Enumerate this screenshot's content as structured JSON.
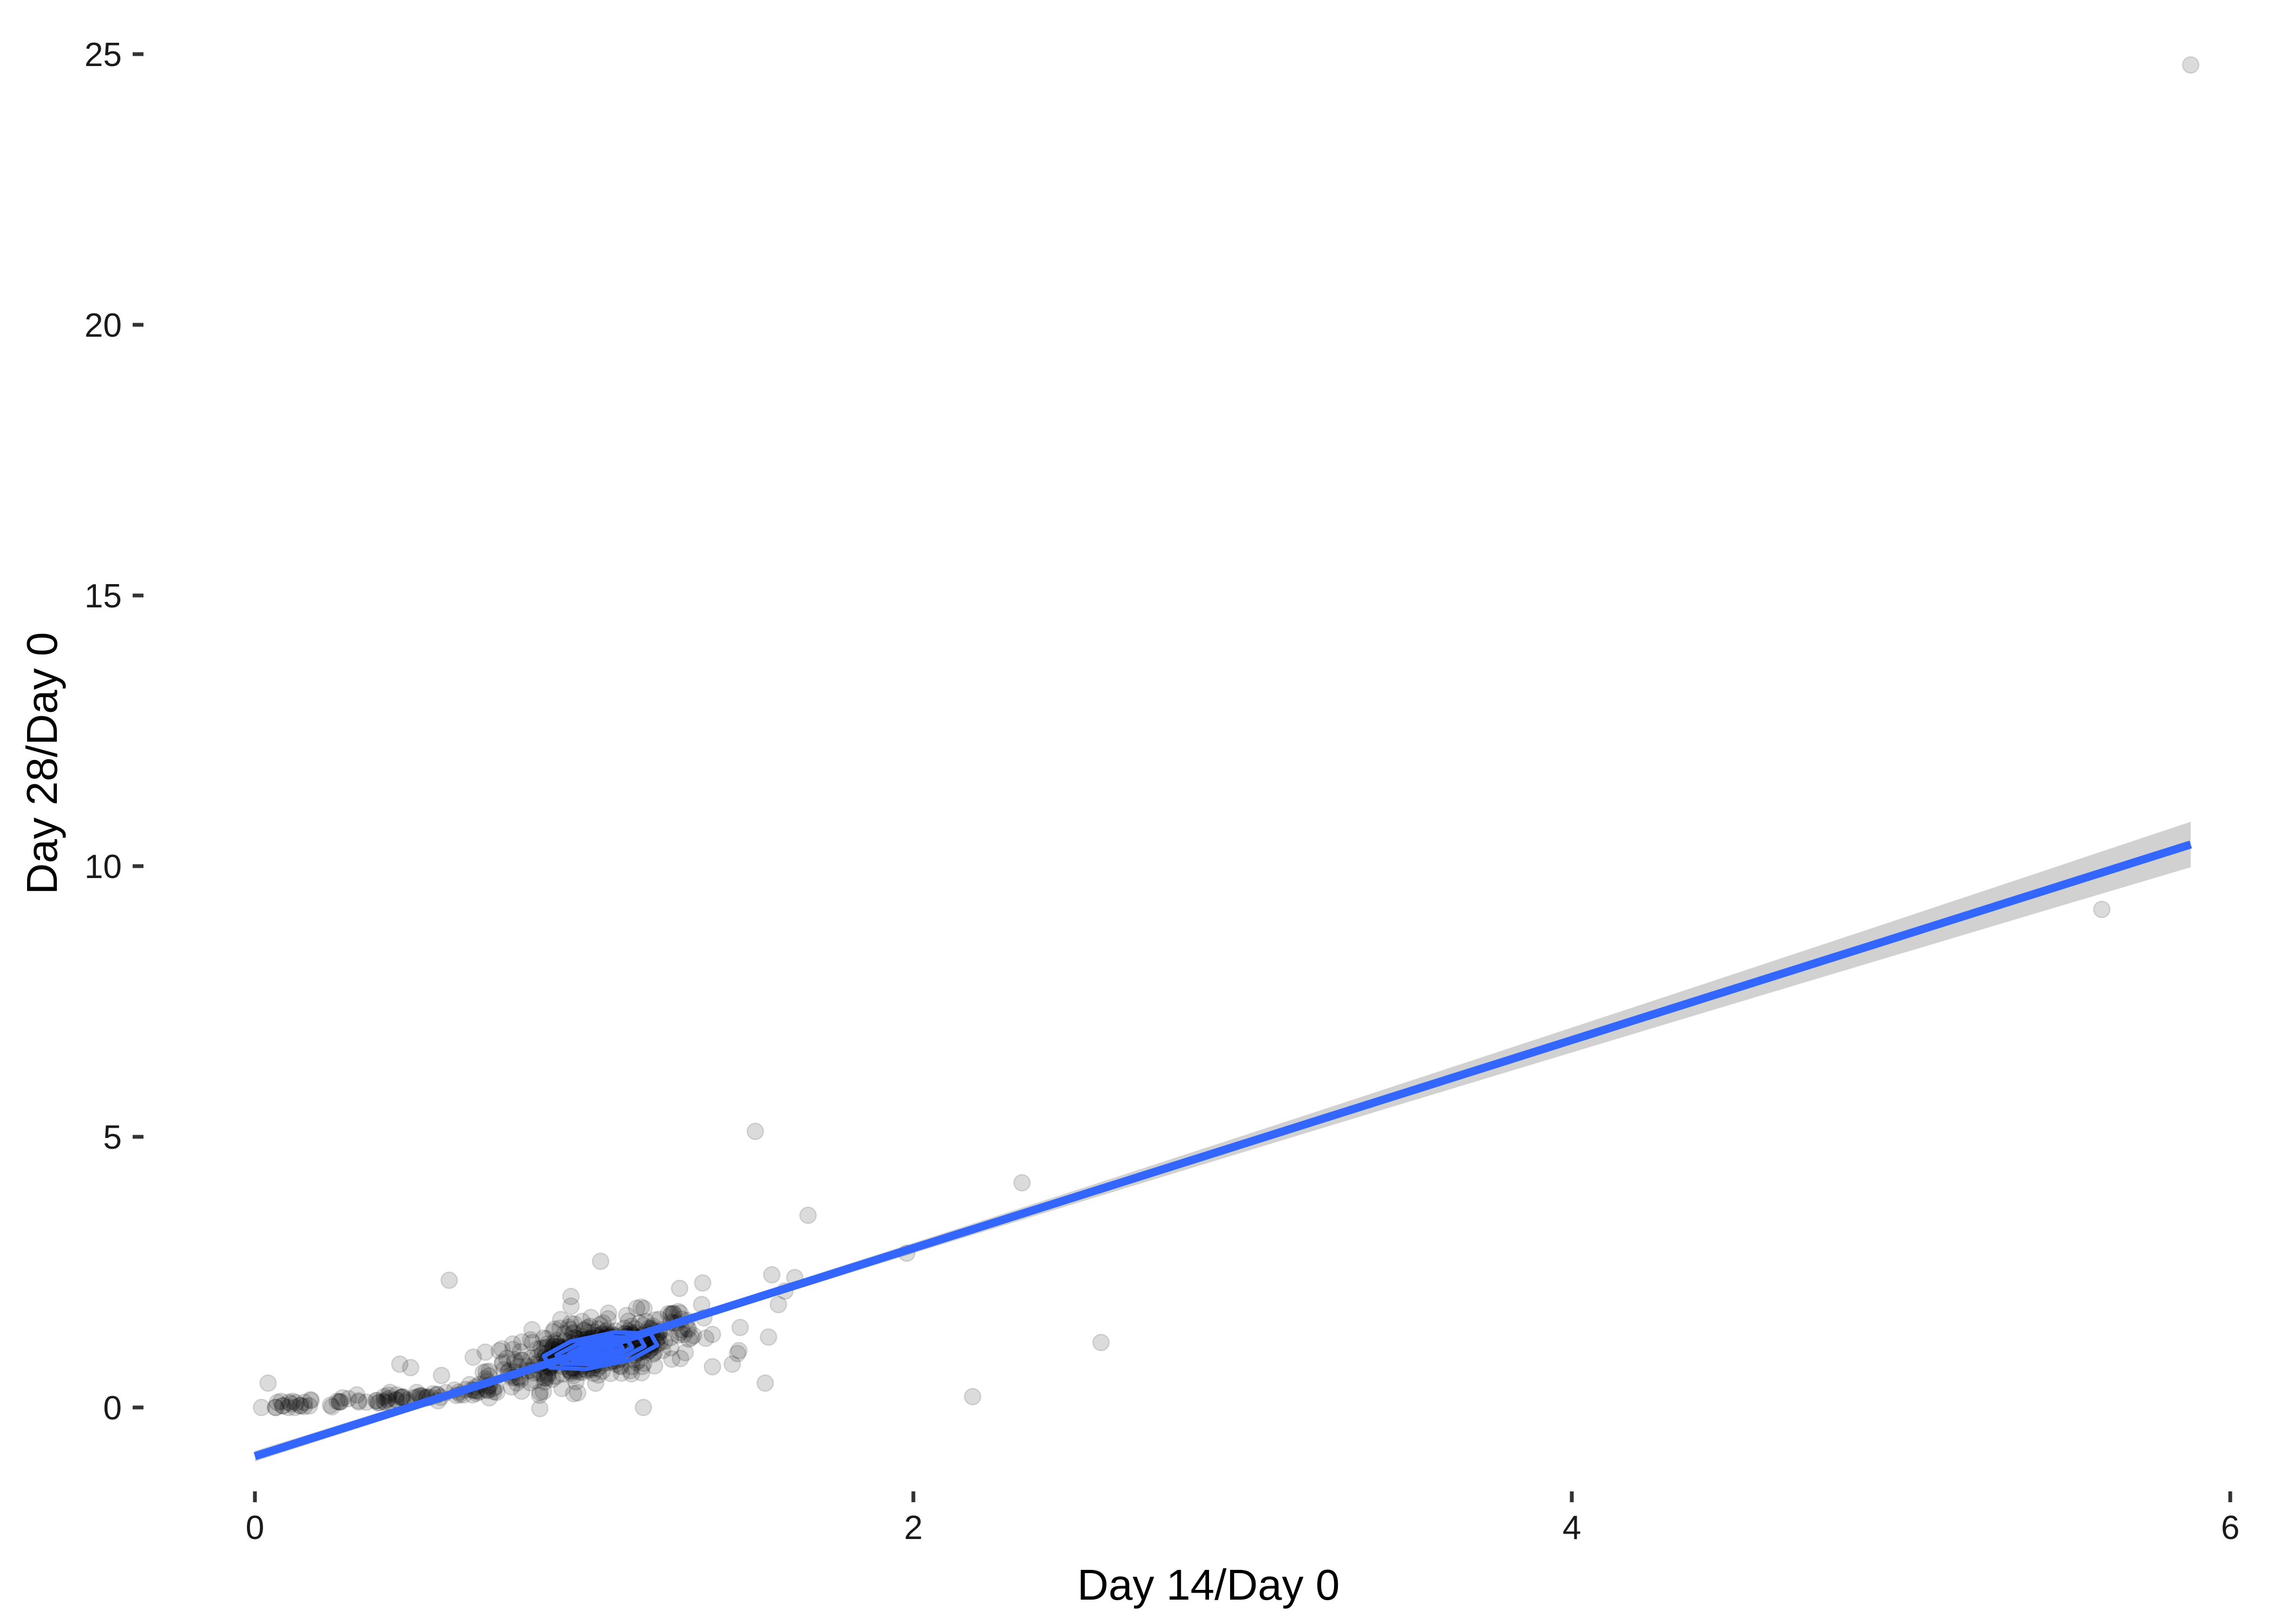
{
  "chart_data": {
    "type": "scatter",
    "title": "",
    "xlabel": "Day 14/Day 0",
    "ylabel": "Day 28/Day 0",
    "xlim": [
      -0.35,
      6.1
    ],
    "ylim": [
      -2.1,
      25.6
    ],
    "x_ticks": [
      0,
      2,
      4,
      6
    ],
    "y_ticks": [
      0,
      5,
      10,
      15,
      20,
      25
    ],
    "grid": false,
    "legend": "none",
    "point_color": "#000000",
    "point_opacity": 0.14,
    "line_color": "#3366FF",
    "ribbon_color": "#999999",
    "outliers": [
      {
        "x": 5.88,
        "y": 24.8
      },
      {
        "x": 5.61,
        "y": 9.2
      },
      {
        "x": 1.52,
        "y": 5.1
      },
      {
        "x": 2.33,
        "y": 4.15
      },
      {
        "x": 1.68,
        "y": 3.55
      },
      {
        "x": 1.98,
        "y": 2.85
      },
      {
        "x": 2.57,
        "y": 1.2
      },
      {
        "x": 2.18,
        "y": 0.2
      },
      {
        "x": 1.57,
        "y": 2.45
      },
      {
        "x": 1.64,
        "y": 2.4
      },
      {
        "x": 1.59,
        "y": 1.9
      },
      {
        "x": 1.61,
        "y": 2.15
      },
      {
        "x": 1.56,
        "y": 1.3
      },
      {
        "x": 1.55,
        "y": 0.45
      },
      {
        "x": 1.47,
        "y": 1.05
      },
      {
        "x": 1.45,
        "y": 0.8
      },
      {
        "x": 1.36,
        "y": 2.3
      },
      {
        "x": 1.29,
        "y": 2.2
      },
      {
        "x": 1.05,
        "y": 2.7
      },
      {
        "x": 0.59,
        "y": 2.35
      },
      {
        "x": 0.96,
        "y": 2.05
      },
      {
        "x": 0.02,
        "y": 0.0
      },
      {
        "x": 0.04,
        "y": 0.45
      },
      {
        "x": 0.44,
        "y": 0.8
      },
      {
        "x": 1.18,
        "y": 0.0
      }
    ],
    "cluster": {
      "center_x": 1.03,
      "center_y": 1.05,
      "spread_x": 0.16,
      "spread_y": 0.33,
      "correlation": 0.55
    },
    "low_tail": {
      "x_from": 0.05,
      "x_to": 0.75,
      "slope": 1.05
    },
    "fit_line": {
      "x_start": 0.0,
      "y_start": -0.9,
      "x_end": 5.88,
      "y_end": 10.4
    },
    "ribbon_half_width_at_end": 0.42,
    "density_contours": [
      {
        "center_x": 1.05,
        "center_y": 1.05,
        "rx": 0.18,
        "ry": 0.3,
        "level": 1
      },
      {
        "center_x": 1.05,
        "center_y": 1.05,
        "rx": 0.14,
        "ry": 0.22,
        "level": 2
      },
      {
        "center_x": 1.05,
        "center_y": 1.05,
        "rx": 0.1,
        "ry": 0.16,
        "level": 3
      },
      {
        "center_x": 1.05,
        "center_y": 1.05,
        "rx": 0.07,
        "ry": 0.1,
        "level": 4
      },
      {
        "center_x": 1.05,
        "center_y": 1.05,
        "rx": 0.04,
        "ry": 0.06,
        "level": 5
      }
    ]
  }
}
